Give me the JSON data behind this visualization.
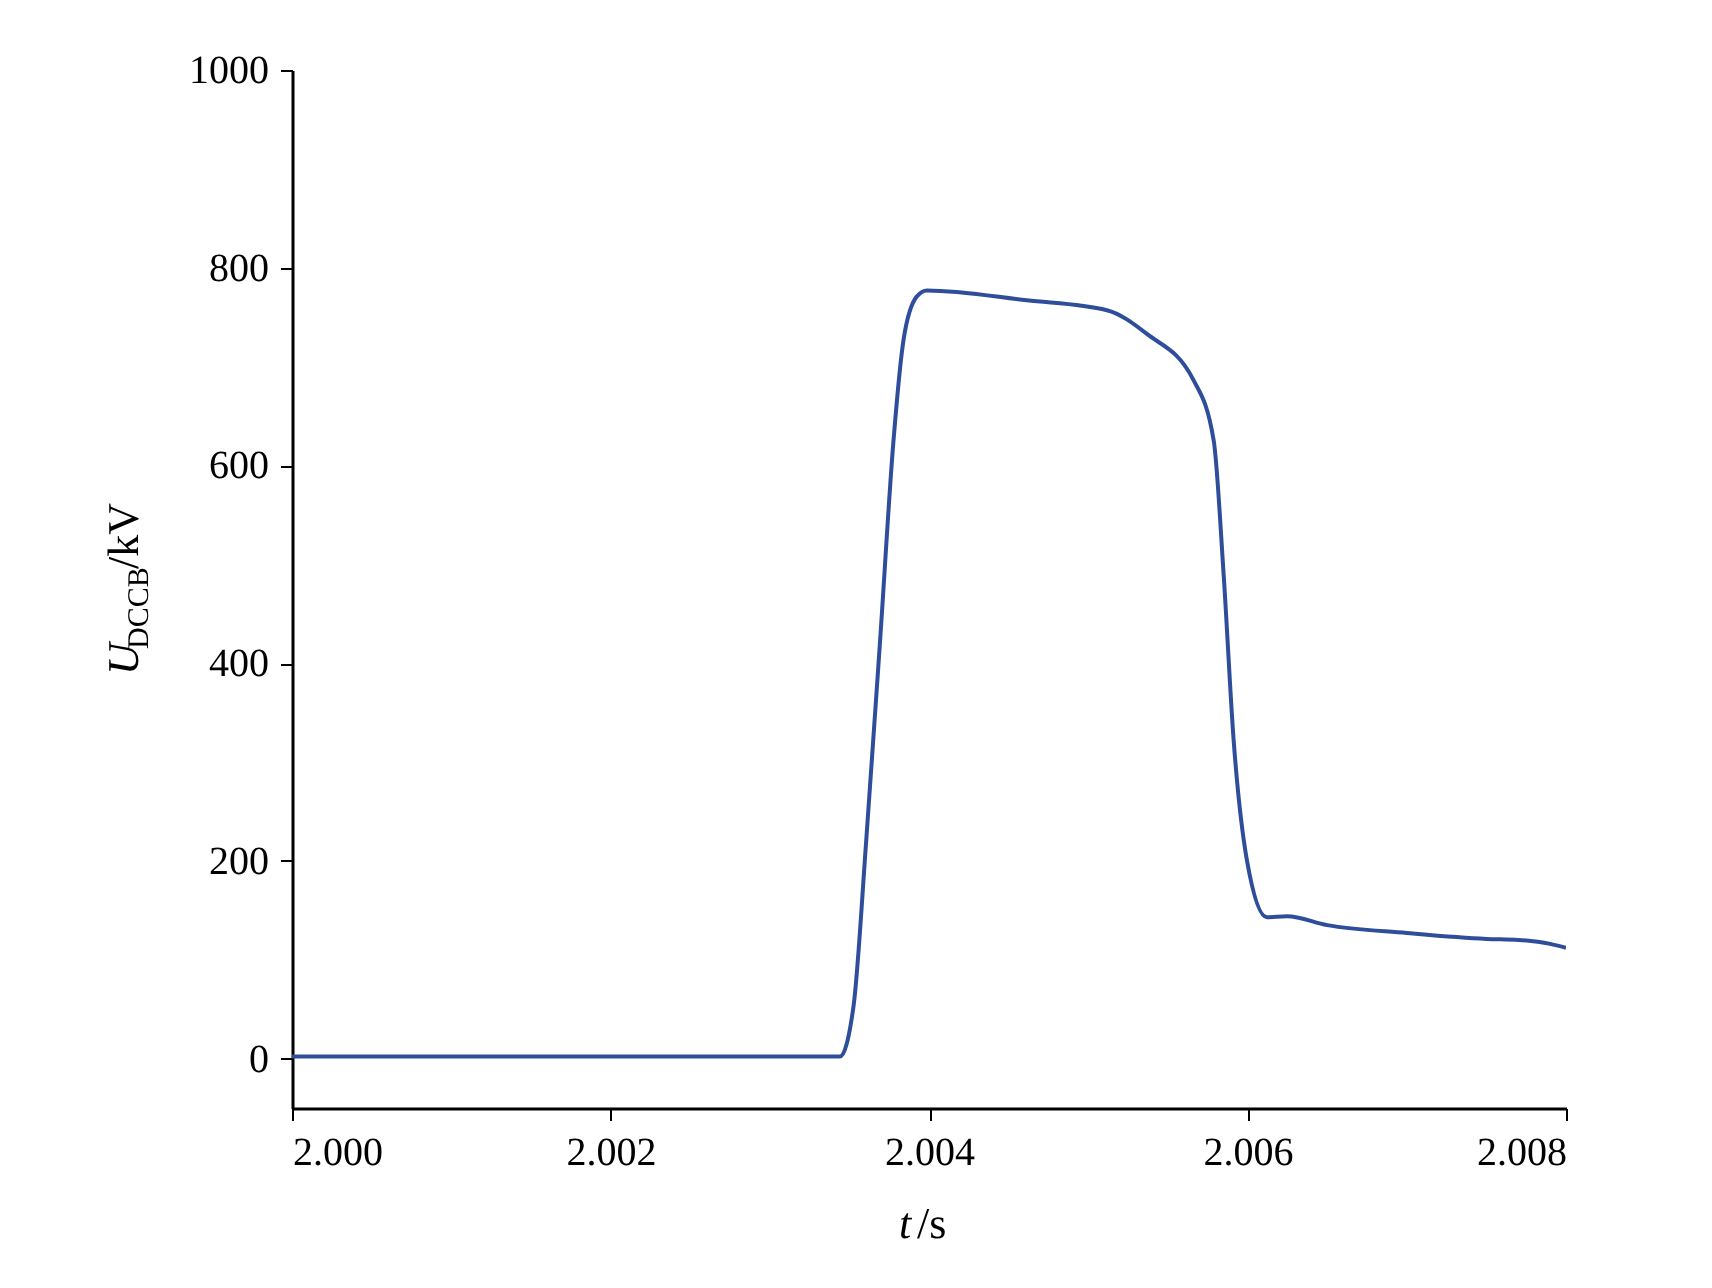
{
  "chart_data": {
    "type": "line",
    "xlabel": "t/s",
    "ylabel": "U$_{DCCB}$/kV",
    "x": [
      2.0,
      2.001,
      2.002,
      2.003,
      2.00344,
      2.003526,
      2.003606,
      2.003693,
      2.003777,
      2.00384,
      2.003924,
      2.003987,
      2.004614,
      2.005117,
      2.005368,
      2.005662,
      2.005788,
      2.00585,
      2.005913,
      2.005997,
      2.006122,
      2.006248,
      2.0065,
      2.007,
      2.0075,
      2.0077,
      2.0079,
      2.008
    ],
    "series": [
      {
        "color": "#2e4e9b",
        "values": [
          2,
          2,
          2,
          2,
          2,
          53,
          221,
          423,
          625,
          727,
          771,
          777,
          767,
          757,
          733,
          686,
          625,
          490,
          322,
          200,
          143,
          144,
          135,
          127,
          121,
          120,
          116,
          112
        ]
      }
    ],
    "xlim": [
      2.0,
      2.008
    ],
    "xticks": [
      {
        "value": 2.0,
        "label": "2.000"
      },
      {
        "value": 2.002,
        "label": "2.002"
      },
      {
        "value": 2.004,
        "label": "2.004"
      },
      {
        "value": 2.006,
        "label": "2.006"
      },
      {
        "value": 2.008,
        "label": "2.008"
      }
    ],
    "ylim": [
      -50,
      1000
    ],
    "yticks": [
      0,
      200,
      400,
      600,
      800,
      1000
    ],
    "grid": false,
    "marker": "none",
    "line_style": "solid"
  }
}
